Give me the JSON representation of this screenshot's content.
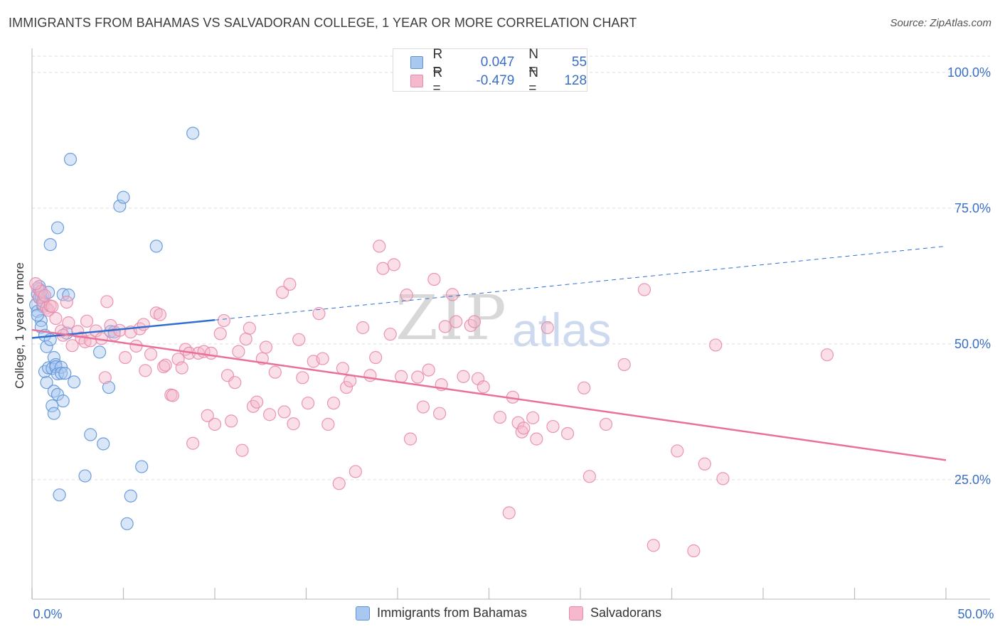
{
  "title": "IMMIGRANTS FROM BAHAMAS VS SALVADORAN COLLEGE, 1 YEAR OR MORE CORRELATION CHART",
  "source": "Source: ZipAtlas.com",
  "watermark": {
    "zip": "ZIP",
    "atlas": "atlas"
  },
  "legend_top": {
    "r_label": "R =",
    "n_label": "N =",
    "rows": [
      {
        "r": "0.047",
        "n": "55"
      },
      {
        "r": "-0.479",
        "n": "128"
      }
    ]
  },
  "legend_bottom": [
    "Immigrants from Bahamas",
    "Salvadorans"
  ],
  "colors": {
    "blue_fill": "#a9c8f0",
    "blue_stroke": "#5e93d8",
    "blue_line": "#2f6fd0",
    "pink_fill": "#f5b8cc",
    "pink_stroke": "#e88aa8",
    "pink_line": "#e8709a",
    "axis_text": "#3a6fc4",
    "grid": "#dedede"
  },
  "chart_data": {
    "type": "scatter",
    "title": "IMMIGRANTS FROM BAHAMAS VS SALVADORAN COLLEGE, 1 YEAR OR MORE CORRELATION CHART",
    "xlabel": "",
    "ylabel": "College, 1 year or more",
    "xlim": [
      0,
      50
    ],
    "ylim": [
      3,
      103
    ],
    "x_tick_labels": [
      "0.0%",
      "50.0%"
    ],
    "y_ticks": [
      25,
      50,
      75,
      100
    ],
    "y_tick_labels": [
      "25.0%",
      "50.0%",
      "75.0%",
      "100.0%"
    ],
    "grid": true,
    "series": [
      {
        "name": "Immigrants from Bahamas",
        "R": 0.047,
        "N": 55,
        "trend": {
          "x0": 0,
          "y0": 51.1,
          "x1": 10,
          "y1": 54.4,
          "dash_x1": 50,
          "dash_y1": 68.0
        },
        "points": [
          [
            0.2,
            57.2
          ],
          [
            0.3,
            59.2
          ],
          [
            0.3,
            56.0
          ],
          [
            0.4,
            58.5
          ],
          [
            0.5,
            54.3
          ],
          [
            0.5,
            53.1
          ],
          [
            0.6,
            58.8
          ],
          [
            0.6,
            56.9
          ],
          [
            0.3,
            55.3
          ],
          [
            0.4,
            60.1
          ],
          [
            0.5,
            58.6
          ],
          [
            0.6,
            57.8
          ],
          [
            0.7,
            51.6
          ],
          [
            0.7,
            44.9
          ],
          [
            0.8,
            42.9
          ],
          [
            0.8,
            49.5
          ],
          [
            0.9,
            59.5
          ],
          [
            0.9,
            45.6
          ],
          [
            1.0,
            68.3
          ],
          [
            1.0,
            50.8
          ],
          [
            1.1,
            38.6
          ],
          [
            1.1,
            45.5
          ],
          [
            1.2,
            41.3
          ],
          [
            1.2,
            37.2
          ],
          [
            1.2,
            47.5
          ],
          [
            1.3,
            46.2
          ],
          [
            1.3,
            45.8
          ],
          [
            1.4,
            71.4
          ],
          [
            1.4,
            40.7
          ],
          [
            1.4,
            44.5
          ],
          [
            1.5,
            22.2
          ],
          [
            1.6,
            45.7
          ],
          [
            1.6,
            44.6
          ],
          [
            1.7,
            59.1
          ],
          [
            1.7,
            39.5
          ],
          [
            1.8,
            44.6
          ],
          [
            1.9,
            52.0
          ],
          [
            2.1,
            84.0
          ],
          [
            2.3,
            43.0
          ],
          [
            2.9,
            25.7
          ],
          [
            3.2,
            33.3
          ],
          [
            3.7,
            48.5
          ],
          [
            3.9,
            31.6
          ],
          [
            4.2,
            42.0
          ],
          [
            4.3,
            52.3
          ],
          [
            4.5,
            52.2
          ],
          [
            4.8,
            75.4
          ],
          [
            5.0,
            77.0
          ],
          [
            5.2,
            16.9
          ],
          [
            5.4,
            22.0
          ],
          [
            6.0,
            27.4
          ],
          [
            6.8,
            68.0
          ],
          [
            8.8,
            88.8
          ],
          [
            0.4,
            60.6
          ],
          [
            2.0,
            59.0
          ]
        ]
      },
      {
        "name": "Salvadorans",
        "R": -0.479,
        "N": 128,
        "trend": {
          "x0": 0,
          "y0": 52.6,
          "x1": 50,
          "y1": 28.6
        },
        "points": [
          [
            0.3,
            60.3
          ],
          [
            0.4,
            58.6
          ],
          [
            0.5,
            59.7
          ],
          [
            0.6,
            57.3
          ],
          [
            0.7,
            58.9
          ],
          [
            0.8,
            56.6
          ],
          [
            0.9,
            56.2
          ],
          [
            1.0,
            57.0
          ],
          [
            1.1,
            56.9
          ],
          [
            1.3,
            54.7
          ],
          [
            1.6,
            52.4
          ],
          [
            1.7,
            51.6
          ],
          [
            1.9,
            57.7
          ],
          [
            2.0,
            53.9
          ],
          [
            2.2,
            49.7
          ],
          [
            2.5,
            52.3
          ],
          [
            2.7,
            51.1
          ],
          [
            2.9,
            50.4
          ],
          [
            3.0,
            54.2
          ],
          [
            3.2,
            50.6
          ],
          [
            3.5,
            52.4
          ],
          [
            3.8,
            51.0
          ],
          [
            4.0,
            43.8
          ],
          [
            4.1,
            57.8
          ],
          [
            4.3,
            53.4
          ],
          [
            4.5,
            51.7
          ],
          [
            4.8,
            52.5
          ],
          [
            5.1,
            47.5
          ],
          [
            5.4,
            52.2
          ],
          [
            5.7,
            49.6
          ],
          [
            5.9,
            52.8
          ],
          [
            6.1,
            53.6
          ],
          [
            6.2,
            45.1
          ],
          [
            6.5,
            48.1
          ],
          [
            6.8,
            55.7
          ],
          [
            7.0,
            55.4
          ],
          [
            7.2,
            45.8
          ],
          [
            7.3,
            46.1
          ],
          [
            7.6,
            40.6
          ],
          [
            7.7,
            40.5
          ],
          [
            8.0,
            47.2
          ],
          [
            8.2,
            45.6
          ],
          [
            8.4,
            49.0
          ],
          [
            8.6,
            48.3
          ],
          [
            8.8,
            31.7
          ],
          [
            9.1,
            48.3
          ],
          [
            9.4,
            48.6
          ],
          [
            9.6,
            36.8
          ],
          [
            9.8,
            48.3
          ],
          [
            10.0,
            35.2
          ],
          [
            10.3,
            51.9
          ],
          [
            10.5,
            54.3
          ],
          [
            10.7,
            44.2
          ],
          [
            10.9,
            35.8
          ],
          [
            11.1,
            42.9
          ],
          [
            11.3,
            48.6
          ],
          [
            11.5,
            30.4
          ],
          [
            11.7,
            50.9
          ],
          [
            11.9,
            52.9
          ],
          [
            12.1,
            38.5
          ],
          [
            12.3,
            39.3
          ],
          [
            12.6,
            47.3
          ],
          [
            12.8,
            49.4
          ],
          [
            13.0,
            37.0
          ],
          [
            13.3,
            44.8
          ],
          [
            13.7,
            59.5
          ],
          [
            13.8,
            37.5
          ],
          [
            14.1,
            61.0
          ],
          [
            14.3,
            35.3
          ],
          [
            14.6,
            50.8
          ],
          [
            14.8,
            43.8
          ],
          [
            15.1,
            39.1
          ],
          [
            15.4,
            46.8
          ],
          [
            15.7,
            55.6
          ],
          [
            15.9,
            47.3
          ],
          [
            16.2,
            35.2
          ],
          [
            16.5,
            39.1
          ],
          [
            16.8,
            24.3
          ],
          [
            17.0,
            45.5
          ],
          [
            17.2,
            42.0
          ],
          [
            17.4,
            43.2
          ],
          [
            17.7,
            26.5
          ],
          [
            18.1,
            53.0
          ],
          [
            18.5,
            44.2
          ],
          [
            18.8,
            47.5
          ],
          [
            19.0,
            68.0
          ],
          [
            19.2,
            63.9
          ],
          [
            19.6,
            51.8
          ],
          [
            19.8,
            64.6
          ],
          [
            20.2,
            44.0
          ],
          [
            20.5,
            59.0
          ],
          [
            20.7,
            32.5
          ],
          [
            21.1,
            43.9
          ],
          [
            21.4,
            38.4
          ],
          [
            21.7,
            45.2
          ],
          [
            22.0,
            61.9
          ],
          [
            22.3,
            37.2
          ],
          [
            22.4,
            42.5
          ],
          [
            22.6,
            53.2
          ],
          [
            23.0,
            59.1
          ],
          [
            23.2,
            54.1
          ],
          [
            23.6,
            44.0
          ],
          [
            24.0,
            53.4
          ],
          [
            24.2,
            54.1
          ],
          [
            24.4,
            43.6
          ],
          [
            24.7,
            42.1
          ],
          [
            25.6,
            36.5
          ],
          [
            26.1,
            18.9
          ],
          [
            26.3,
            40.2
          ],
          [
            26.6,
            35.5
          ],
          [
            26.8,
            33.8
          ],
          [
            26.9,
            34.5
          ],
          [
            27.4,
            36.4
          ],
          [
            27.6,
            32.5
          ],
          [
            28.2,
            53.0
          ],
          [
            28.5,
            34.8
          ],
          [
            29.3,
            33.5
          ],
          [
            30.2,
            41.9
          ],
          [
            30.5,
            25.6
          ],
          [
            31.4,
            35.2
          ],
          [
            32.4,
            46.2
          ],
          [
            33.5,
            60.0
          ],
          [
            34.0,
            12.9
          ],
          [
            35.3,
            30.3
          ],
          [
            36.2,
            11.9
          ],
          [
            36.8,
            27.9
          ],
          [
            37.4,
            49.8
          ],
          [
            37.8,
            25.2
          ],
          [
            43.5,
            48.0
          ],
          [
            0.2,
            61.1
          ]
        ]
      }
    ]
  }
}
